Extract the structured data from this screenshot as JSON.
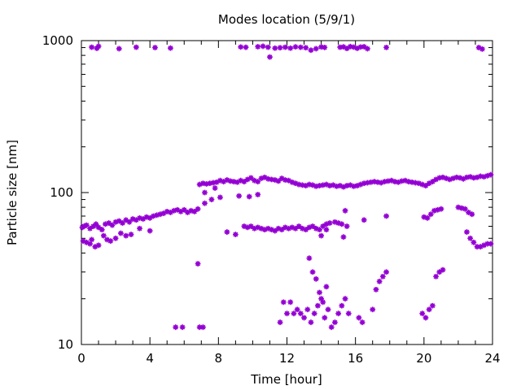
{
  "chart_data": {
    "type": "scatter",
    "title": "Modes location (5/9/1)",
    "xlabel": "Time [hour]",
    "ylabel": "Particle size [nm]",
    "xlim": [
      0,
      24
    ],
    "ylim": [
      10,
      1000
    ],
    "yscale": "log",
    "grid": false,
    "legend": "none",
    "marker_color": "#9400d3",
    "x_ticks": [
      0,
      4,
      8,
      12,
      16,
      20,
      24
    ],
    "x_tick_labels": [
      "0",
      "4",
      "8",
      "12",
      "16",
      "20",
      "24"
    ],
    "y_ticks": [
      10,
      100,
      1000
    ],
    "y_tick_labels": [
      "10",
      "100",
      "1000"
    ],
    "series": [
      {
        "points": [
          [
            0.05,
            59
          ],
          [
            0.15,
            60
          ],
          [
            0.3,
            61
          ],
          [
            0.5,
            58
          ],
          [
            0.7,
            60
          ],
          [
            0.85,
            62
          ],
          [
            1.0,
            59
          ],
          [
            1.2,
            57
          ],
          [
            1.4,
            62
          ],
          [
            1.6,
            63
          ],
          [
            1.8,
            61
          ],
          [
            2.0,
            64
          ],
          [
            2.2,
            65
          ],
          [
            2.4,
            63
          ],
          [
            2.6,
            66
          ],
          [
            2.8,
            64
          ],
          [
            3.0,
            67
          ],
          [
            3.2,
            66
          ],
          [
            3.4,
            68
          ],
          [
            3.6,
            67
          ],
          [
            3.8,
            69
          ],
          [
            4.0,
            68
          ],
          [
            4.2,
            70
          ],
          [
            4.4,
            71
          ],
          [
            4.6,
            72
          ],
          [
            4.8,
            73
          ],
          [
            5.0,
            75
          ],
          [
            5.2,
            74
          ],
          [
            5.4,
            76
          ],
          [
            5.6,
            77
          ],
          [
            5.8,
            75
          ],
          [
            6.0,
            77
          ],
          [
            6.2,
            74
          ],
          [
            6.4,
            76
          ],
          [
            6.6,
            75
          ],
          [
            6.8,
            78
          ],
          [
            0.1,
            48
          ],
          [
            0.3,
            47
          ],
          [
            0.5,
            46
          ],
          [
            0.6,
            49
          ],
          [
            0.8,
            44
          ],
          [
            1.0,
            45
          ],
          [
            1.3,
            52
          ],
          [
            1.5,
            49
          ],
          [
            1.7,
            48
          ],
          [
            2.0,
            50
          ],
          [
            2.3,
            54
          ],
          [
            2.6,
            52
          ],
          [
            2.9,
            53
          ],
          [
            3.4,
            58
          ],
          [
            4.0,
            56
          ],
          [
            6.9,
            113
          ],
          [
            7.1,
            115
          ],
          [
            7.3,
            114
          ],
          [
            7.5,
            115
          ],
          [
            7.7,
            116
          ],
          [
            7.9,
            117
          ],
          [
            8.1,
            120
          ],
          [
            8.3,
            118
          ],
          [
            8.5,
            121
          ],
          [
            8.7,
            119
          ],
          [
            8.9,
            118
          ],
          [
            9.1,
            117
          ],
          [
            9.3,
            120
          ],
          [
            9.5,
            118
          ],
          [
            9.7,
            122
          ],
          [
            9.9,
            125
          ],
          [
            10.1,
            120
          ],
          [
            10.3,
            118
          ],
          [
            10.5,
            124
          ],
          [
            10.7,
            126
          ],
          [
            10.9,
            123
          ],
          [
            11.1,
            122
          ],
          [
            11.3,
            121
          ],
          [
            11.5,
            119
          ],
          [
            11.7,
            124
          ],
          [
            11.9,
            121
          ],
          [
            12.1,
            120
          ],
          [
            12.3,
            117
          ],
          [
            12.5,
            115
          ],
          [
            12.7,
            113
          ],
          [
            12.9,
            112
          ],
          [
            13.1,
            111
          ],
          [
            13.3,
            113
          ],
          [
            13.5,
            112
          ],
          [
            13.7,
            110
          ],
          [
            13.9,
            111
          ],
          [
            14.1,
            112
          ],
          [
            14.3,
            113
          ],
          [
            14.5,
            111
          ],
          [
            14.7,
            112
          ],
          [
            14.9,
            110
          ],
          [
            15.1,
            111
          ],
          [
            15.3,
            109
          ],
          [
            15.5,
            111
          ],
          [
            15.7,
            112
          ],
          [
            15.9,
            110
          ],
          [
            16.1,
            111
          ],
          [
            16.3,
            113
          ],
          [
            16.5,
            115
          ],
          [
            16.7,
            116
          ],
          [
            16.9,
            117
          ],
          [
            17.1,
            118
          ],
          [
            17.3,
            117
          ],
          [
            17.5,
            116
          ],
          [
            17.7,
            118
          ],
          [
            17.9,
            119
          ],
          [
            18.1,
            120
          ],
          [
            18.3,
            118
          ],
          [
            18.5,
            117
          ],
          [
            18.7,
            119
          ],
          [
            18.9,
            120
          ],
          [
            19.1,
            118
          ],
          [
            19.3,
            117
          ],
          [
            19.5,
            116
          ],
          [
            19.7,
            115
          ],
          [
            19.9,
            113
          ],
          [
            20.1,
            111
          ],
          [
            20.3,
            115
          ],
          [
            20.5,
            118
          ],
          [
            20.7,
            122
          ],
          [
            20.9,
            125
          ],
          [
            21.1,
            126
          ],
          [
            21.3,
            124
          ],
          [
            21.5,
            122
          ],
          [
            21.7,
            124
          ],
          [
            21.9,
            126
          ],
          [
            22.1,
            125
          ],
          [
            22.3,
            123
          ],
          [
            22.5,
            126
          ],
          [
            22.7,
            127
          ],
          [
            22.9,
            125
          ],
          [
            23.1,
            126
          ],
          [
            23.3,
            128
          ],
          [
            23.5,
            127
          ],
          [
            23.7,
            129
          ],
          [
            23.9,
            131
          ],
          [
            7.2,
            85
          ],
          [
            7.6,
            90
          ],
          [
            8.1,
            93
          ],
          [
            9.2,
            95
          ],
          [
            9.8,
            94
          ],
          [
            10.3,
            97
          ],
          [
            9.5,
            60
          ],
          [
            9.7,
            59
          ],
          [
            9.9,
            60
          ],
          [
            10.1,
            58
          ],
          [
            10.3,
            59
          ],
          [
            10.5,
            58
          ],
          [
            10.7,
            57
          ],
          [
            10.9,
            58
          ],
          [
            11.1,
            57
          ],
          [
            11.3,
            56
          ],
          [
            11.5,
            58
          ],
          [
            11.7,
            57
          ],
          [
            11.9,
            59
          ],
          [
            12.1,
            58
          ],
          [
            12.3,
            59
          ],
          [
            12.5,
            58
          ],
          [
            12.7,
            60
          ],
          [
            12.9,
            58
          ],
          [
            13.1,
            57
          ],
          [
            13.3,
            59
          ],
          [
            13.5,
            60
          ],
          [
            13.7,
            58
          ],
          [
            13.9,
            57
          ],
          [
            14.1,
            60
          ],
          [
            14.3,
            62
          ],
          [
            14.5,
            63
          ],
          [
            14.8,
            64
          ],
          [
            15.0,
            63
          ],
          [
            15.2,
            62
          ],
          [
            15.5,
            60
          ],
          [
            14.0,
            52
          ],
          [
            15.3,
            51
          ],
          [
            14.3,
            57
          ],
          [
            15.4,
            76
          ],
          [
            16.5,
            66
          ],
          [
            17.8,
            70
          ],
          [
            20.0,
            69
          ],
          [
            20.2,
            68
          ],
          [
            20.4,
            72
          ],
          [
            20.6,
            76
          ],
          [
            20.8,
            77
          ],
          [
            21.0,
            78
          ],
          [
            22.0,
            80
          ],
          [
            22.2,
            79
          ],
          [
            22.4,
            78
          ],
          [
            22.6,
            74
          ],
          [
            22.8,
            72
          ],
          [
            22.5,
            55
          ],
          [
            22.7,
            50
          ],
          [
            22.9,
            47
          ],
          [
            23.1,
            44
          ],
          [
            23.3,
            44
          ],
          [
            23.5,
            45
          ],
          [
            23.7,
            46
          ],
          [
            23.9,
            46
          ],
          [
            9.0,
            53
          ],
          [
            8.5,
            55
          ],
          [
            7.2,
            100
          ],
          [
            7.8,
            107
          ],
          [
            6.8,
            34
          ],
          [
            5.5,
            13
          ],
          [
            5.9,
            13
          ],
          [
            6.9,
            13
          ],
          [
            7.1,
            13
          ],
          [
            11.6,
            14
          ],
          [
            11.8,
            19
          ],
          [
            12.0,
            16
          ],
          [
            12.2,
            19
          ],
          [
            12.4,
            16
          ],
          [
            12.6,
            17
          ],
          [
            12.8,
            16
          ],
          [
            13.0,
            15
          ],
          [
            13.2,
            17
          ],
          [
            13.4,
            14
          ],
          [
            13.6,
            16
          ],
          [
            13.8,
            18
          ],
          [
            14.0,
            20
          ],
          [
            14.2,
            15
          ],
          [
            14.4,
            17
          ],
          [
            14.6,
            13
          ],
          [
            14.8,
            14
          ],
          [
            15.0,
            16
          ],
          [
            15.2,
            18
          ],
          [
            15.4,
            20
          ],
          [
            15.6,
            16
          ],
          [
            13.3,
            37
          ],
          [
            13.5,
            30
          ],
          [
            13.7,
            27
          ],
          [
            13.9,
            22
          ],
          [
            14.1,
            19
          ],
          [
            14.3,
            24
          ],
          [
            16.2,
            15
          ],
          [
            16.4,
            14
          ],
          [
            17.0,
            17
          ],
          [
            17.2,
            23
          ],
          [
            17.4,
            26
          ],
          [
            17.6,
            28
          ],
          [
            17.8,
            30
          ],
          [
            19.9,
            16
          ],
          [
            20.1,
            15
          ],
          [
            20.3,
            17
          ],
          [
            20.5,
            18
          ],
          [
            20.7,
            28
          ],
          [
            20.9,
            30
          ],
          [
            21.1,
            31
          ]
        ]
      },
      {
        "points": [
          [
            0.6,
            905
          ],
          [
            0.9,
            890
          ],
          [
            1.0,
            918
          ],
          [
            2.2,
            885
          ],
          [
            3.2,
            905
          ],
          [
            4.3,
            900
          ],
          [
            5.2,
            893
          ],
          [
            9.3,
            908
          ],
          [
            9.6,
            904
          ],
          [
            10.3,
            912
          ],
          [
            10.6,
            918
          ],
          [
            10.9,
            905
          ],
          [
            11.0,
            780
          ],
          [
            11.3,
            892
          ],
          [
            11.6,
            898
          ],
          [
            11.9,
            905
          ],
          [
            12.2,
            892
          ],
          [
            12.5,
            910
          ],
          [
            12.8,
            904
          ],
          [
            13.1,
            898
          ],
          [
            13.4,
            865
          ],
          [
            13.7,
            885
          ],
          [
            14.0,
            908
          ],
          [
            14.2,
            902
          ],
          [
            15.1,
            905
          ],
          [
            15.3,
            910
          ],
          [
            15.5,
            888
          ],
          [
            15.7,
            914
          ],
          [
            15.9,
            906
          ],
          [
            16.1,
            890
          ],
          [
            16.3,
            908
          ],
          [
            16.5,
            912
          ],
          [
            16.7,
            885
          ],
          [
            17.8,
            902
          ],
          [
            23.2,
            900
          ],
          [
            23.4,
            880
          ]
        ]
      }
    ]
  }
}
